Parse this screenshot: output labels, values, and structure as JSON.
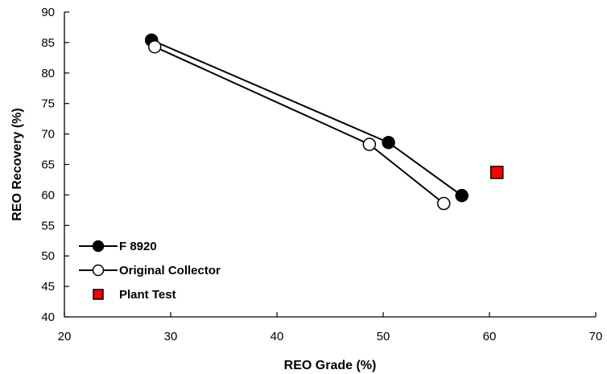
{
  "chart_data": {
    "type": "scatter",
    "title": "",
    "xlabel": "REO Grade (%)",
    "ylabel": "REO Recovery (%)",
    "xlim": [
      20,
      70
    ],
    "ylim": [
      40,
      90
    ],
    "xticks": [
      20,
      30,
      40,
      50,
      60,
      70
    ],
    "yticks": [
      40,
      45,
      50,
      55,
      60,
      65,
      70,
      75,
      80,
      85,
      90
    ],
    "grid": false,
    "legend_position": "bottom-left",
    "series": [
      {
        "name": "F 8920",
        "marker": "filled-circle",
        "line": true,
        "color": "#000000",
        "fill": "#000000",
        "points": [
          [
            28.2,
            85.4
          ],
          [
            50.5,
            68.6
          ],
          [
            57.4,
            59.9
          ]
        ]
      },
      {
        "name": "Original Collector",
        "marker": "open-circle",
        "line": true,
        "color": "#000000",
        "fill": "#ffffff",
        "points": [
          [
            28.5,
            84.3
          ],
          [
            48.7,
            68.3
          ],
          [
            55.7,
            58.6
          ]
        ]
      },
      {
        "name": "Plant Test",
        "marker": "square",
        "line": false,
        "color": "#000000",
        "fill": "#ff0000",
        "points": [
          [
            60.7,
            63.7
          ]
        ]
      }
    ]
  }
}
